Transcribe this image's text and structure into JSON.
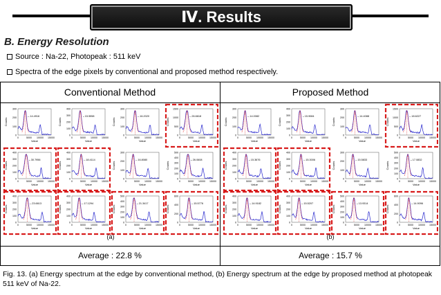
{
  "header": {
    "title": "Ⅳ. Results"
  },
  "section": {
    "title": "B. Energy Resolution"
  },
  "bullets": [
    {
      "text": "Source : Na-22,  Photopeak : 511 keV"
    },
    {
      "text": "Spectra of the edge pixels by conventional and proposed method respectively."
    }
  ],
  "table": {
    "left_header": "Conventional Method",
    "right_header": "Proposed Method",
    "left_label": "(a)",
    "right_label": "(b)",
    "left_average": "Average : 22.8 %",
    "right_average": "Average : 15.7 %"
  },
  "axis_labels": {
    "x": "Value",
    "y": "Counts"
  },
  "conventional_panels": [
    {
      "value": "14.4916",
      "highlighted": false,
      "ymax": 300,
      "yticks": [
        0,
        100,
        200,
        300
      ]
    },
    {
      "value": "15.5558",
      "highlighted": false,
      "ymax": 400,
      "yticks": [
        0,
        100,
        200,
        300,
        400
      ]
    },
    {
      "value": "16.2020",
      "highlighted": false,
      "ymax": 300,
      "yticks": [
        0,
        100,
        200,
        300
      ]
    },
    {
      "value": "26.6618",
      "highlighted": true,
      "ymax": 1500,
      "yticks": [
        0,
        500,
        1000,
        1500
      ]
    },
    {
      "value": "30.7956",
      "highlighted": true,
      "ymax": 400,
      "yticks": [
        0,
        100,
        200,
        300,
        400
      ]
    },
    {
      "value": "18.4114",
      "highlighted": true,
      "ymax": 400,
      "yticks": [
        0,
        100,
        200,
        300,
        400
      ]
    },
    {
      "value": "16.8080",
      "highlighted": false,
      "ymax": 300,
      "yticks": [
        0,
        100,
        200,
        300
      ]
    },
    {
      "value": "26.0608",
      "highlighted": false,
      "ymax": 500,
      "yticks": [
        0,
        100,
        200,
        300,
        400,
        500
      ]
    },
    {
      "value": "23.6613",
      "highlighted": true,
      "ymax": 400,
      "yticks": [
        0,
        100,
        200,
        300,
        400
      ]
    },
    {
      "value": "17.1294",
      "highlighted": true,
      "ymax": 400,
      "yticks": [
        0,
        100,
        200,
        300,
        400
      ]
    },
    {
      "value": "21.3417",
      "highlighted": true,
      "ymax": 500,
      "yticks": [
        0,
        100,
        200,
        300,
        400,
        500
      ]
    },
    {
      "value": "15.5776",
      "highlighted": true,
      "ymax": 600,
      "yticks": [
        0,
        200,
        400,
        600
      ]
    }
  ],
  "proposed_panels": [
    {
      "value": "14.0082",
      "highlighted": false,
      "ymax": 300,
      "yticks": [
        0,
        100,
        200,
        300
      ]
    },
    {
      "value": "15.9084",
      "highlighted": false,
      "ymax": 400,
      "yticks": [
        0,
        100,
        200,
        300,
        400
      ]
    },
    {
      "value": "14.4088",
      "highlighted": false,
      "ymax": 300,
      "yticks": [
        0,
        100,
        200,
        300
      ]
    },
    {
      "value": "18.6227",
      "highlighted": true,
      "ymax": 1500,
      "yticks": [
        0,
        500,
        1000,
        1500
      ]
    },
    {
      "value": "15.3676",
      "highlighted": true,
      "ymax": 400,
      "yticks": [
        0,
        100,
        200,
        300,
        400
      ]
    },
    {
      "value": "15.3006",
      "highlighted": true,
      "ymax": 400,
      "yticks": [
        0,
        100,
        200,
        300,
        400
      ]
    },
    {
      "value": "15.5833",
      "highlighted": false,
      "ymax": 300,
      "yticks": [
        0,
        100,
        200,
        300
      ]
    },
    {
      "value": "17.0832",
      "highlighted": false,
      "ymax": 500,
      "yticks": [
        0,
        100,
        200,
        300,
        400,
        500
      ]
    },
    {
      "value": "14.9182",
      "highlighted": true,
      "ymax": 400,
      "yticks": [
        0,
        100,
        200,
        300,
        400
      ]
    },
    {
      "value": "15.5207",
      "highlighted": true,
      "ymax": 400,
      "yticks": [
        0,
        100,
        200,
        300,
        400
      ]
    },
    {
      "value": "13.9314",
      "highlighted": true,
      "ymax": 500,
      "yticks": [
        0,
        100,
        200,
        300,
        400,
        500
      ]
    },
    {
      "value": "14.9096",
      "highlighted": true,
      "ymax": 600,
      "yticks": [
        0,
        200,
        400,
        600
      ]
    }
  ],
  "xticks": [
    "0",
    "5000",
    "10000",
    "15000"
  ],
  "caption": "Fig. 13. (a) Energy spectrum at the edge by conventional method, (b) Energy spectrum at the edge by proposed method at photopeak 511 keV of Na-22.",
  "colors": {
    "curve": "#2222cc",
    "fit": "#dd1111",
    "highlight": "#d81b1b"
  }
}
